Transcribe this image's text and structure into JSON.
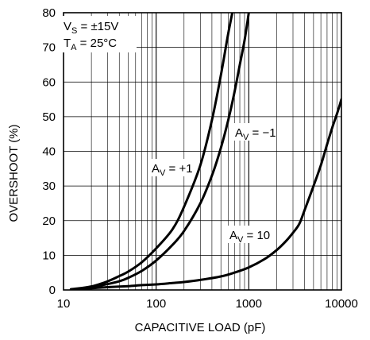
{
  "chart_data": {
    "type": "line",
    "xlabel": "CAPACITIVE LOAD (pF)",
    "ylabel": "OVERSHOOT (%)",
    "xscale": "log",
    "xlim": [
      10,
      10000
    ],
    "ylim": [
      0,
      80
    ],
    "grid": true,
    "x_tick_labels": [
      "10",
      "100",
      "1000",
      "10000"
    ],
    "y_tick_labels": [
      "0",
      "10",
      "20",
      "30",
      "40",
      "50",
      "60",
      "70",
      "80"
    ],
    "conditions": {
      "vs_main": "V",
      "vs_sub": "S",
      "vs_rest": " = ±15V",
      "ta_main": "T",
      "ta_sub": "A",
      "ta_rest": " = 25°C"
    },
    "series": [
      {
        "name": "AV = +1",
        "label_main": "A",
        "label_sub": "V",
        "label_rest": " = +1",
        "color": "#000000",
        "x": [
          12,
          20,
          30,
          40,
          50,
          70,
          100,
          150,
          200,
          300,
          400,
          500,
          600,
          700
        ],
        "y": [
          0.2,
          1,
          2.5,
          4,
          5.3,
          8,
          12,
          17.5,
          24,
          36,
          49,
          62,
          74,
          83
        ]
      },
      {
        "name": "AV = −1",
        "label_main": "A",
        "label_sub": "V",
        "label_rest": " = −1",
        "color": "#000000",
        "x": [
          15,
          20,
          30,
          40,
          50,
          70,
          100,
          150,
          200,
          300,
          400,
          500,
          600,
          700,
          800,
          900,
          1000
        ],
        "y": [
          0.3,
          0.8,
          1.7,
          2.5,
          3.5,
          5.5,
          8.5,
          13,
          17,
          25,
          33,
          41,
          49,
          57,
          65,
          72,
          80
        ]
      },
      {
        "name": "AV = 10",
        "label_main": "A",
        "label_sub": "V",
        "label_rest": " = 10",
        "color": "#000000",
        "x": [
          13,
          20,
          30,
          50,
          70,
          100,
          150,
          200,
          300,
          500,
          700,
          1000,
          1500,
          2000,
          2500,
          3000,
          3500,
          4000,
          5000,
          6000,
          7000,
          8000,
          9000,
          10000
        ],
        "y": [
          0.2,
          0.5,
          0.8,
          1.1,
          1.4,
          1.6,
          2,
          2.3,
          2.9,
          3.9,
          5,
          6.5,
          9,
          11.5,
          14,
          16.5,
          19,
          23,
          30,
          36,
          42,
          47,
          51,
          55
        ]
      }
    ]
  }
}
